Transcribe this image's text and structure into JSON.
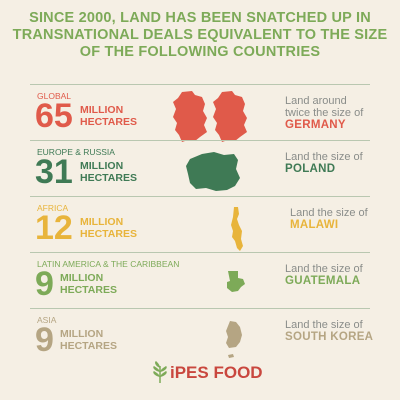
{
  "title": {
    "line1": "SINCE 2000, LAND HAS BEEN SNATCHED UP IN",
    "line2": "TRANSNATIONAL DEALS EQUIVALENT TO THE SIZE",
    "line3": "OF THE FOLLOWING COUNTRIES"
  },
  "rows": [
    {
      "region": "GLOBAL",
      "number": "65",
      "unit1": "MILLION",
      "unit2": "HECTARES",
      "desc1": "Land around",
      "desc2": "twice the size of",
      "country": "GERMANY",
      "color": "#e05a4a"
    },
    {
      "region": "EUROPE & RUSSIA",
      "number": "31",
      "unit1": "MILLION",
      "unit2": "HECTARES",
      "desc1": "Land the size of",
      "desc2": "",
      "country": "POLAND",
      "color": "#3f7a55"
    },
    {
      "region": "AFRICA",
      "number": "12",
      "unit1": "MILLION",
      "unit2": "HECTARES",
      "desc1": "Land the size of",
      "desc2": "",
      "country": "MALAWI",
      "color": "#e8b43b"
    },
    {
      "region": "LATIN AMERICA & THE CARIBBEAN",
      "number": "9",
      "unit1": "MILLION",
      "unit2": "HECTARES",
      "desc1": "Land the size of",
      "desc2": "",
      "country": "GUATEMALA",
      "color": "#7daa58"
    },
    {
      "region": "ASIA",
      "number": "9",
      "unit1": "MILLION",
      "unit2": "HECTARES",
      "desc1": "Land the size of",
      "desc2": "",
      "country": "SOUTH KOREA",
      "color": "#b5a583"
    }
  ],
  "logo": {
    "text": "iPES FOOD",
    "color": "#c9473e",
    "leaf_color": "#7daa58"
  }
}
